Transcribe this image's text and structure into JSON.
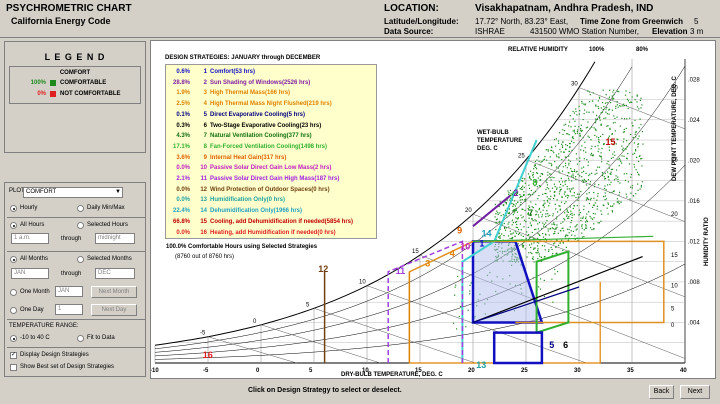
{
  "header": {
    "title": "PSYCHROMETRIC CHART",
    "subtitle": "California Energy Code",
    "location_label": "LOCATION:",
    "location_value": "Visakhapatnam, Andhra Pradesh, IND",
    "latlon_label": "Latitude/Longitude:",
    "latlon_value": "17.72° North, 83.23° East,",
    "tz_label": "Time Zone from Greenwich",
    "tz_value": "5",
    "source_label": "Data Source:",
    "source_value": "ISHRAE",
    "station_value": "431500 WMO Station Number,",
    "elev_label": "Elevation",
    "elev_value": "3 m"
  },
  "legend": {
    "title": "L E G E N D",
    "comfort_heading": "COMFORT",
    "items": [
      {
        "pct": "100%",
        "label": "COMFORTABLE",
        "color": "#1e8a1e"
      },
      {
        "pct": "0%",
        "label": "NOT COMFORTABLE",
        "color": "#e02020"
      }
    ]
  },
  "plot": {
    "label": "PLOT:",
    "selected": "COMFORT",
    "hourly": "Hourly",
    "daily": "Daily Min/Max",
    "all_hours": "All Hours",
    "selected_hours": "Selected Hours",
    "from_hour": "1 a.m.",
    "through": "through",
    "to_hour": "midnight",
    "all_months": "All Months",
    "selected_months": "Selected Months",
    "from_month": "JAN",
    "to_month": "DEC",
    "one_month": "One Month",
    "month_value": "JAN",
    "next_month": "Next Month",
    "one_day": "One Day",
    "day_value": "1",
    "next_day": "Next Day",
    "temp_range_label": "TEMPERATURE RANGE:",
    "range1": "-10 to 40 C",
    "range2": "Fit to Data",
    "display_strategies": "Display Design Strategies",
    "show_best": "Show Best set of Design Strategies"
  },
  "strategies": {
    "heading": "DESIGN STRATEGIES: JANUARY through DECEMBER",
    "rows": [
      {
        "pct": "0.6%",
        "num": "1",
        "name": "Comfort(53 hrs)",
        "color": "#1010c0"
      },
      {
        "pct": "28.8%",
        "num": "2",
        "name": "Sun Shading of Windows(2526 hrs)",
        "color": "#8020a0"
      },
      {
        "pct": "1.9%",
        "num": "3",
        "name": "High Thermal Mass(166 hrs)",
        "color": "#e08000"
      },
      {
        "pct": "2.5%",
        "num": "4",
        "name": "High Thermal Mass Night Flushed(219 hrs)",
        "color": "#e08000"
      },
      {
        "pct": "0.1%",
        "num": "5",
        "name": "Direct Evaporative Cooling(5 hrs)",
        "color": "#000080"
      },
      {
        "pct": "0.3%",
        "num": "6",
        "name": "Two-Stage Evaporative Cooling(23 hrs)",
        "color": "#000000"
      },
      {
        "pct": "4.3%",
        "num": "7",
        "name": "Natural Ventilation Cooling(377 hrs)",
        "color": "#107010"
      },
      {
        "pct": "17.1%",
        "num": "8",
        "name": "Fan-Forced Ventilation Cooling(1498 hrs)",
        "color": "#30b030"
      },
      {
        "pct": "3.6%",
        "num": "9",
        "name": "Internal Heat Gain(317 hrs)",
        "color": "#e06000"
      },
      {
        "pct": "0.0%",
        "num": "10",
        "name": "Passive Solar Direct Gain Low Mass(2 hrs)",
        "color": "#c020c0"
      },
      {
        "pct": "2.1%",
        "num": "11",
        "name": "Passive Solar Direct Gain High Mass(187 hrs)",
        "color": "#a020e0"
      },
      {
        "pct": "0.0%",
        "num": "12",
        "name": "Wind Protection of Outdoor Spaces(0 hrs)",
        "color": "#704010"
      },
      {
        "pct": "0.0%",
        "num": "13",
        "name": "Humidification Only(0 hrs)",
        "color": "#20a0a0"
      },
      {
        "pct": "22.4%",
        "num": "14",
        "name": "Dehumidification Only(1966 hrs)",
        "color": "#20a0c0"
      },
      {
        "pct": "66.8%",
        "num": "15",
        "name": "Cooling, add Dehumidification if needed(5854 hrs)",
        "color": "#c00000"
      },
      {
        "pct": "0.0%",
        "num": "16",
        "name": "Heating, add Humidification if needed(0 hrs)",
        "color": "#e02020"
      }
    ],
    "summary1": "100.0% Comfortable Hours using Selected Strategies",
    "summary2": "(8760 out of 8760 hrs)"
  },
  "chart": {
    "rh_label": "RELATIVE HUMIDITY",
    "rh100": "100%",
    "rh80": "80%",
    "wetbulb_label": "WET-BULB TEMPERATURE DEG. C",
    "dewpoint_label": "DEW POINT TEMPERATURE, DEG. C",
    "humidity_label": "HUMIDITY RATIO",
    "xlabel": "DRY-BULB TEMPERATURE, DEG. C",
    "x_ticks": [
      "-10",
      "-5",
      "0",
      "5",
      "10",
      "15",
      "20",
      "25",
      "30",
      "35",
      "40"
    ],
    "ratio_ticks": [
      ".028",
      ".024",
      ".020",
      ".016",
      ".012",
      ".008",
      ".004"
    ],
    "dew_ticks": [
      "30",
      "25",
      "20",
      "15",
      "10",
      "5",
      "0"
    ],
    "wetbulb_ticks": [
      "30",
      "25",
      "20",
      "15",
      "10",
      "5",
      "0",
      "-5"
    ],
    "zone_labels": [
      "1",
      "2",
      "3",
      "4",
      "5",
      "6",
      "7",
      "8",
      "9",
      "10",
      "11",
      "12",
      "13",
      "14",
      "15",
      "16"
    ]
  },
  "footer": {
    "hint": "Click on Design Strategy to select or deselect.",
    "back": "Back",
    "next": "Next"
  }
}
